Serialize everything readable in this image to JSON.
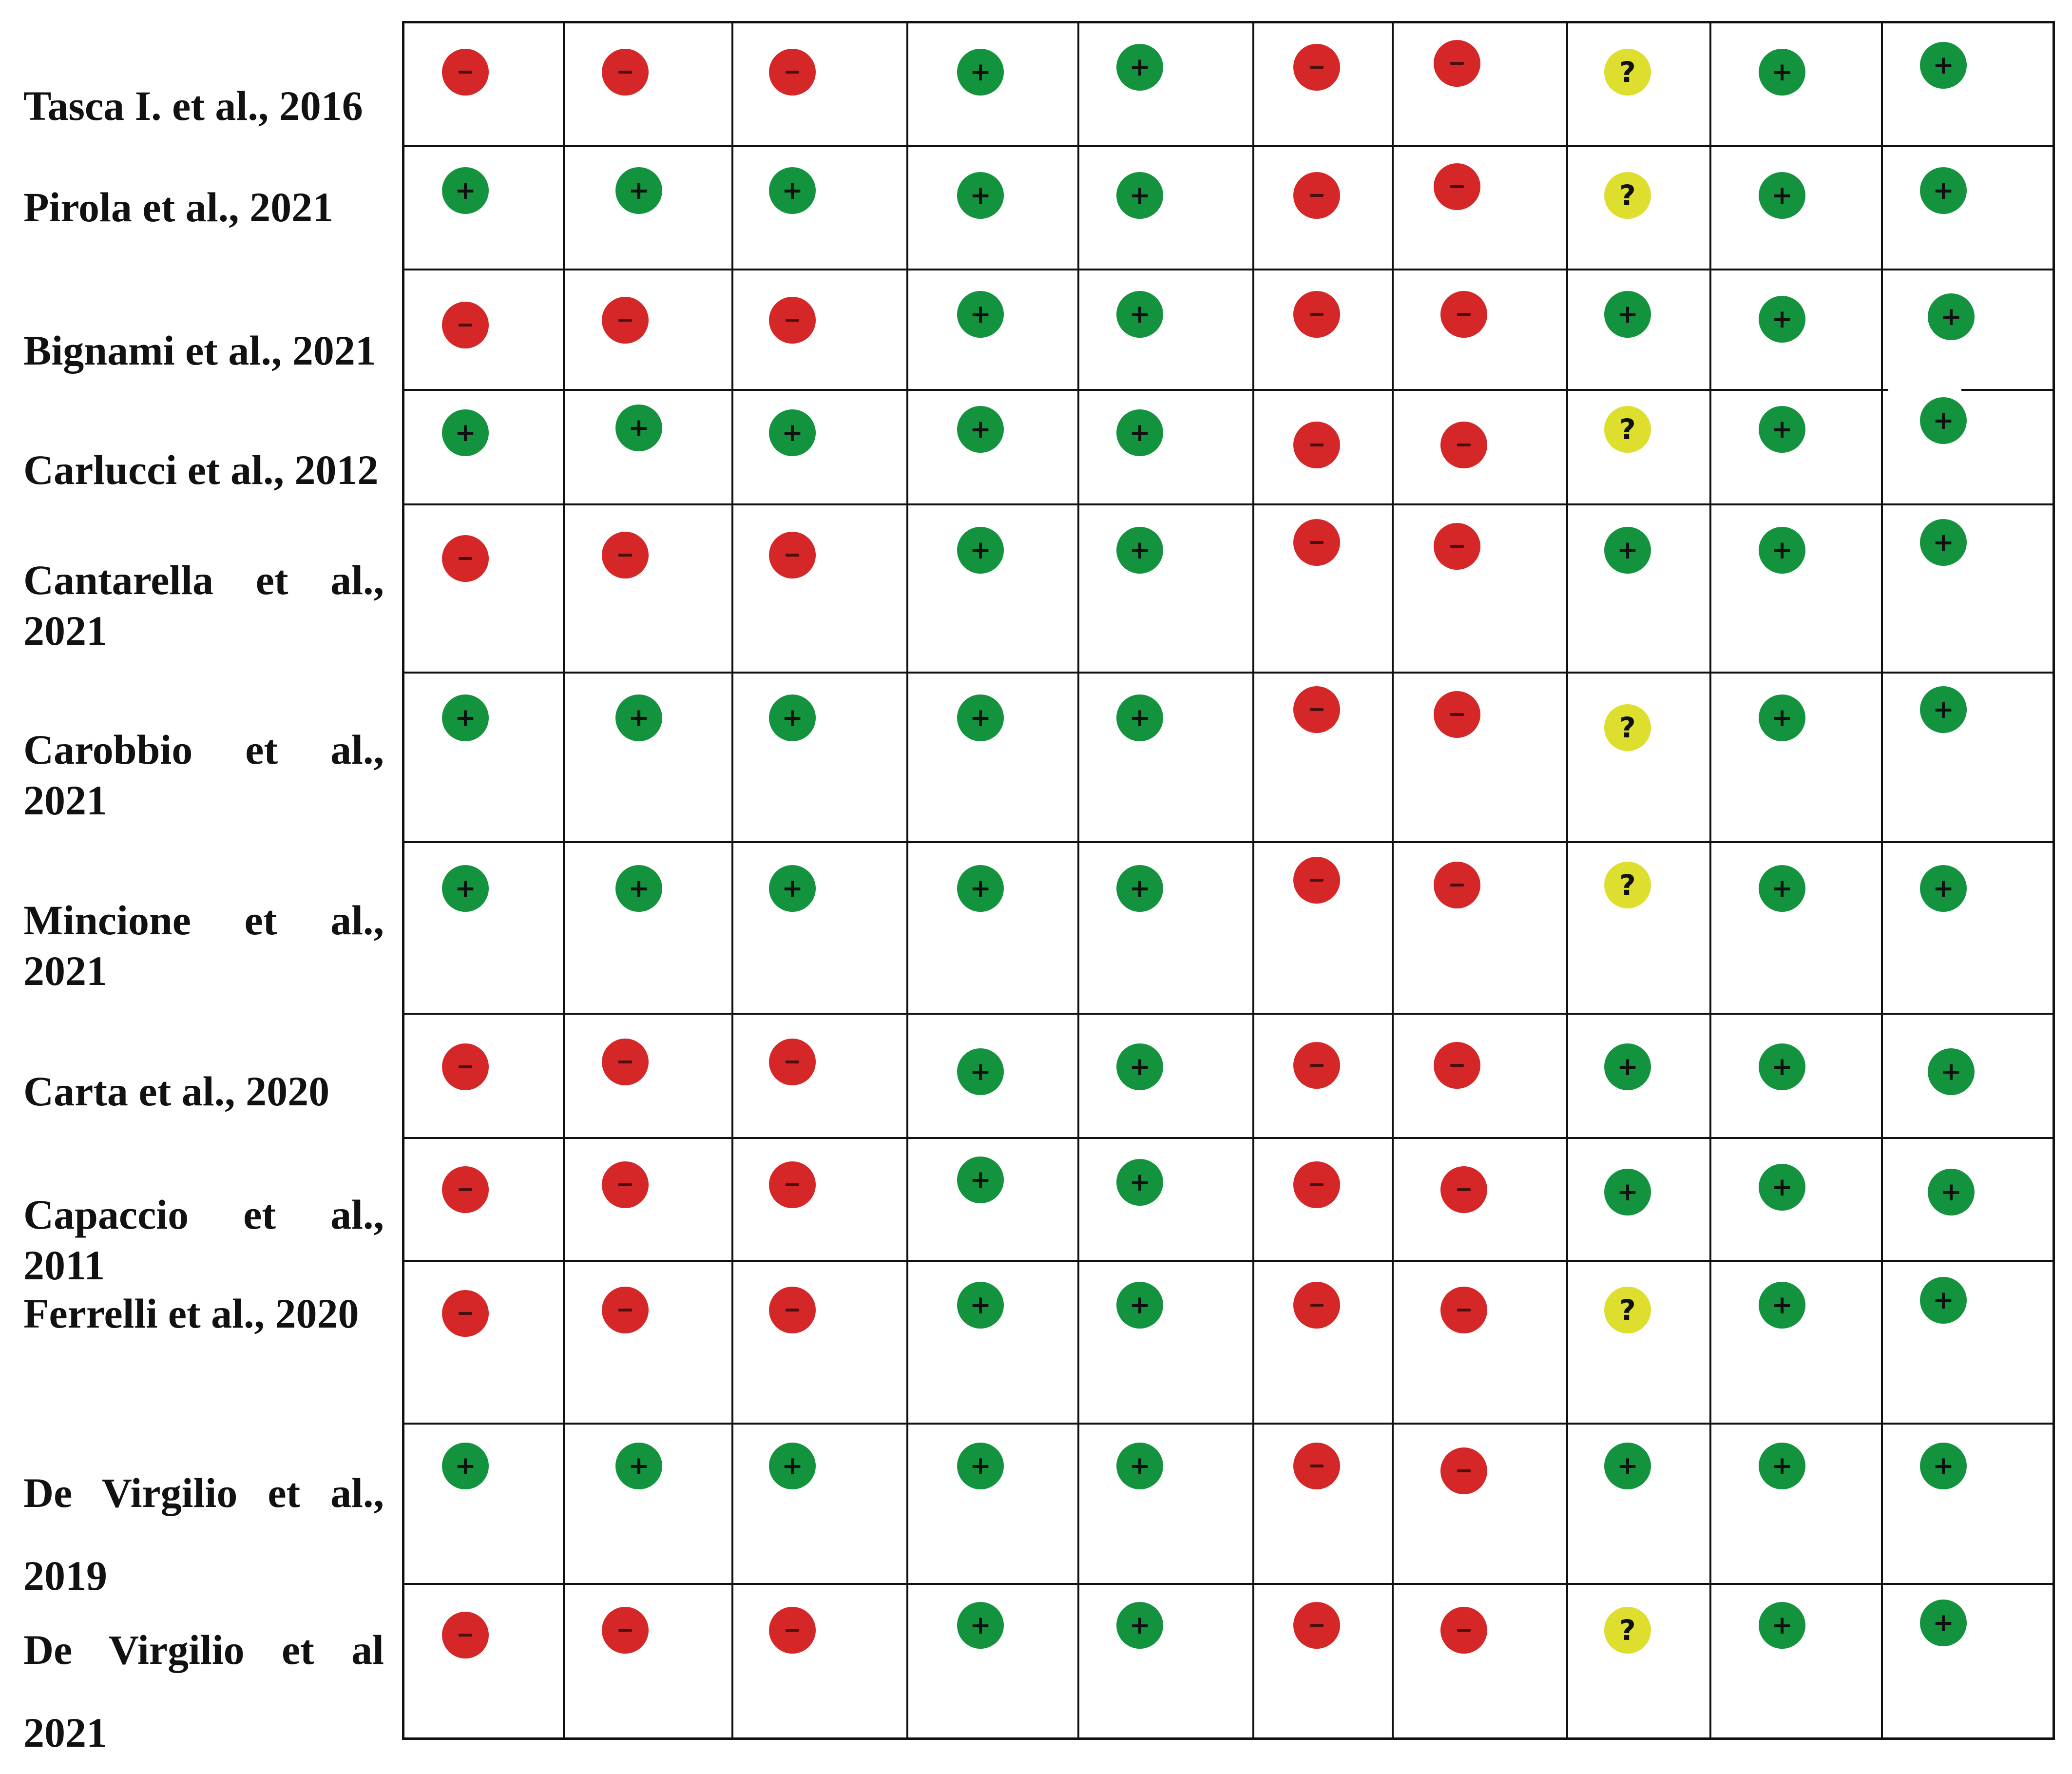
{
  "colors": {
    "high": "#d62728",
    "low": "#14933f",
    "unclear": "#dede2e",
    "grid": "#111111"
  },
  "symbols": {
    "low": "+",
    "high": "−",
    "unclear": "?"
  },
  "studies": [
    {
      "label": "Tasca I. et al., 2016",
      "judgements": [
        "high",
        "high",
        "high",
        "low",
        "low",
        "high",
        "high",
        "unclear",
        "low",
        "low"
      ]
    },
    {
      "label": "Pirola et al., 2021",
      "judgements": [
        "low",
        "low",
        "low",
        "low",
        "low",
        "high",
        "high",
        "unclear",
        "low",
        "low"
      ]
    },
    {
      "label": "Bignami et al., 2021",
      "judgements": [
        "high",
        "high",
        "high",
        "low",
        "low",
        "high",
        "high",
        "low",
        "low",
        "low"
      ]
    },
    {
      "label": "Carlucci et al., 2012",
      "judgements": [
        "low",
        "low",
        "low",
        "low",
        "low",
        "high",
        "high",
        "unclear",
        "low",
        "low"
      ]
    },
    {
      "label": "Cantarella et al., 2021",
      "judgements": [
        "high",
        "high",
        "high",
        "low",
        "low",
        "high",
        "high",
        "low",
        "low",
        "low"
      ]
    },
    {
      "label": "Carobbio et al., 2021",
      "judgements": [
        "low",
        "low",
        "low",
        "low",
        "low",
        "high",
        "high",
        "unclear",
        "low",
        "low"
      ]
    },
    {
      "label": "Mincione et al., 2021",
      "judgements": [
        "low",
        "low",
        "low",
        "low",
        "low",
        "high",
        "high",
        "unclear",
        "low",
        "low"
      ]
    },
    {
      "label": "Carta et al., 2020",
      "judgements": [
        "high",
        "high",
        "high",
        "low",
        "low",
        "high",
        "high",
        "low",
        "low",
        "low"
      ]
    },
    {
      "label": "Capaccio et al., 2011",
      "judgements": [
        "high",
        "high",
        "high",
        "low",
        "low",
        "high",
        "high",
        "low",
        "low",
        "low"
      ]
    },
    {
      "label": "Ferrelli et al., 2020",
      "judgements": [
        "high",
        "high",
        "high",
        "low",
        "low",
        "high",
        "high",
        "unclear",
        "low",
        "low"
      ]
    },
    {
      "label": "De Virgilio et al., 2019",
      "judgements": [
        "low",
        "low",
        "low",
        "low",
        "low",
        "high",
        "high",
        "low",
        "low",
        "low"
      ]
    },
    {
      "label": "De Virgilio et al 2021",
      "judgements": [
        "high",
        "high",
        "high",
        "low",
        "low",
        "high",
        "high",
        "unclear",
        "low",
        "low"
      ]
    }
  ]
}
